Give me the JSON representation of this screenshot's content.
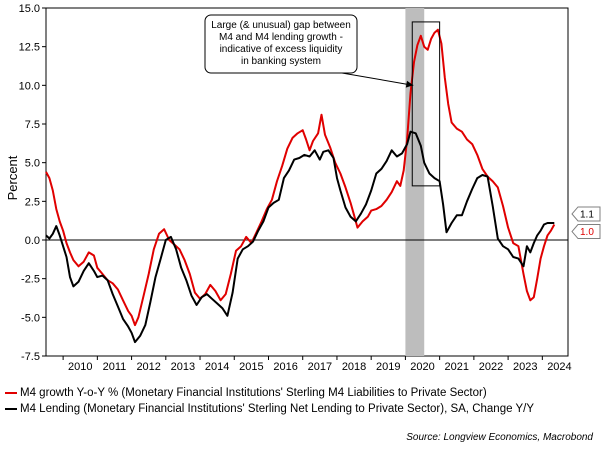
{
  "chart_data": {
    "type": "line",
    "ylabel": "Percent",
    "ylim": [
      -7.5,
      15.0
    ],
    "yticks": [
      "15.0",
      "12.5",
      "10.0",
      "7.5",
      "5.0",
      "2.5",
      "0.0",
      "-2.5",
      "-5.0",
      "-7.5"
    ],
    "xlim": [
      2009.5,
      2024.75
    ],
    "xticks": [
      "2010",
      "2011",
      "2012",
      "2013",
      "2014",
      "2015",
      "2016",
      "2017",
      "2018",
      "2019",
      "2020",
      "2021",
      "2022",
      "2023",
      "2024"
    ],
    "grid": false,
    "shaded_period": [
      2020.0,
      2020.55
    ],
    "annotation": {
      "lines": [
        "Large (& unusual) gap between",
        "M4 and M4 lending growth -",
        "indicative of excess liquidity",
        "in banking system"
      ]
    },
    "end_labels": [
      {
        "text": "1.1",
        "color": "#000000"
      },
      {
        "text": "1.0",
        "color": "#e00000"
      }
    ],
    "series": [
      {
        "name": "M4 growth Y-o-Y % (Monetary Financial Institutions' Sterling M4 Liabilities to Private Sector)",
        "color": "#e00000",
        "points": [
          [
            2009.5,
            4.4
          ],
          [
            2009.6,
            4.0
          ],
          [
            2009.7,
            3.2
          ],
          [
            2009.8,
            2.0
          ],
          [
            2009.9,
            1.2
          ],
          [
            2010.0,
            0.6
          ],
          [
            2010.1,
            -0.2
          ],
          [
            2010.2,
            -0.8
          ],
          [
            2010.3,
            -1.3
          ],
          [
            2010.45,
            -1.7
          ],
          [
            2010.6,
            -1.4
          ],
          [
            2010.75,
            -0.8
          ],
          [
            2010.9,
            -1.0
          ],
          [
            2011.0,
            -1.8
          ],
          [
            2011.15,
            -2.2
          ],
          [
            2011.3,
            -2.6
          ],
          [
            2011.45,
            -2.8
          ],
          [
            2011.6,
            -3.2
          ],
          [
            2011.75,
            -3.9
          ],
          [
            2011.9,
            -4.6
          ],
          [
            2012.0,
            -4.9
          ],
          [
            2012.1,
            -5.5
          ],
          [
            2012.2,
            -5.0
          ],
          [
            2012.35,
            -3.6
          ],
          [
            2012.5,
            -2.2
          ],
          [
            2012.65,
            -0.6
          ],
          [
            2012.8,
            0.4
          ],
          [
            2012.95,
            0.7
          ],
          [
            2013.1,
            0.0
          ],
          [
            2013.25,
            -0.3
          ],
          [
            2013.4,
            -0.6
          ],
          [
            2013.55,
            -1.3
          ],
          [
            2013.7,
            -2.2
          ],
          [
            2013.85,
            -3.4
          ],
          [
            2014.0,
            -3.8
          ],
          [
            2014.15,
            -3.5
          ],
          [
            2014.3,
            -2.9
          ],
          [
            2014.45,
            -3.3
          ],
          [
            2014.6,
            -3.9
          ],
          [
            2014.75,
            -3.5
          ],
          [
            2014.9,
            -2.2
          ],
          [
            2015.05,
            -0.7
          ],
          [
            2015.2,
            -0.4
          ],
          [
            2015.35,
            0.2
          ],
          [
            2015.5,
            -0.2
          ],
          [
            2015.65,
            0.5
          ],
          [
            2015.8,
            1.2
          ],
          [
            2015.95,
            2.0
          ],
          [
            2016.1,
            2.6
          ],
          [
            2016.25,
            3.8
          ],
          [
            2016.4,
            4.8
          ],
          [
            2016.55,
            5.9
          ],
          [
            2016.7,
            6.6
          ],
          [
            2016.85,
            6.9
          ],
          [
            2017.0,
            7.1
          ],
          [
            2017.1,
            6.5
          ],
          [
            2017.2,
            5.8
          ],
          [
            2017.3,
            6.4
          ],
          [
            2017.45,
            6.9
          ],
          [
            2017.55,
            8.1
          ],
          [
            2017.65,
            6.8
          ],
          [
            2017.8,
            6.0
          ],
          [
            2017.95,
            5.0
          ],
          [
            2018.1,
            4.3
          ],
          [
            2018.25,
            3.4
          ],
          [
            2018.4,
            2.4
          ],
          [
            2018.5,
            1.6
          ],
          [
            2018.6,
            0.8
          ],
          [
            2018.75,
            1.2
          ],
          [
            2018.9,
            1.5
          ],
          [
            2019.0,
            1.9
          ],
          [
            2019.15,
            2.0
          ],
          [
            2019.3,
            2.2
          ],
          [
            2019.45,
            2.6
          ],
          [
            2019.6,
            3.1
          ],
          [
            2019.75,
            3.8
          ],
          [
            2019.85,
            3.5
          ],
          [
            2019.95,
            4.5
          ],
          [
            2020.05,
            6.5
          ],
          [
            2020.15,
            9.5
          ],
          [
            2020.25,
            11.5
          ],
          [
            2020.35,
            12.6
          ],
          [
            2020.45,
            13.2
          ],
          [
            2020.55,
            12.5
          ],
          [
            2020.65,
            12.3
          ],
          [
            2020.75,
            13.0
          ],
          [
            2020.85,
            13.4
          ],
          [
            2020.95,
            13.6
          ],
          [
            2021.05,
            12.7
          ],
          [
            2021.15,
            10.5
          ],
          [
            2021.25,
            8.8
          ],
          [
            2021.35,
            7.6
          ],
          [
            2021.5,
            7.2
          ],
          [
            2021.65,
            7.0
          ],
          [
            2021.8,
            6.5
          ],
          [
            2021.95,
            6.2
          ],
          [
            2022.1,
            5.5
          ],
          [
            2022.25,
            4.6
          ],
          [
            2022.4,
            4.1
          ],
          [
            2022.55,
            3.8
          ],
          [
            2022.7,
            3.4
          ],
          [
            2022.85,
            2.2
          ],
          [
            2023.0,
            0.8
          ],
          [
            2023.15,
            -0.2
          ],
          [
            2023.3,
            -0.4
          ],
          [
            2023.45,
            -2.2
          ],
          [
            2023.55,
            -3.3
          ],
          [
            2023.65,
            -3.9
          ],
          [
            2023.75,
            -3.7
          ],
          [
            2023.85,
            -2.5
          ],
          [
            2023.95,
            -1.2
          ],
          [
            2024.05,
            -0.4
          ],
          [
            2024.15,
            0.3
          ],
          [
            2024.25,
            0.6
          ],
          [
            2024.35,
            1.0
          ]
        ]
      },
      {
        "name": "M4 Lending (Monetary Financial Institutions' Sterling Net Lending to Private Sector), SA, Change Y/Y",
        "color": "#000000",
        "points": [
          [
            2009.5,
            0.3
          ],
          [
            2009.6,
            0.1
          ],
          [
            2009.7,
            0.4
          ],
          [
            2009.8,
            0.9
          ],
          [
            2009.9,
            0.3
          ],
          [
            2010.0,
            -0.4
          ],
          [
            2010.1,
            -1.1
          ],
          [
            2010.2,
            -2.4
          ],
          [
            2010.3,
            -3.0
          ],
          [
            2010.45,
            -2.7
          ],
          [
            2010.6,
            -2.0
          ],
          [
            2010.75,
            -1.5
          ],
          [
            2010.9,
            -2.0
          ],
          [
            2011.0,
            -2.4
          ],
          [
            2011.15,
            -2.3
          ],
          [
            2011.3,
            -2.6
          ],
          [
            2011.45,
            -3.5
          ],
          [
            2011.6,
            -4.3
          ],
          [
            2011.75,
            -5.1
          ],
          [
            2011.9,
            -5.6
          ],
          [
            2012.0,
            -6.0
          ],
          [
            2012.1,
            -6.6
          ],
          [
            2012.25,
            -6.2
          ],
          [
            2012.4,
            -5.5
          ],
          [
            2012.55,
            -4.0
          ],
          [
            2012.7,
            -2.4
          ],
          [
            2012.85,
            -1.2
          ],
          [
            2013.0,
            0.0
          ],
          [
            2013.15,
            0.2
          ],
          [
            2013.3,
            -0.6
          ],
          [
            2013.45,
            -1.8
          ],
          [
            2013.6,
            -2.6
          ],
          [
            2013.75,
            -3.6
          ],
          [
            2013.9,
            -4.2
          ],
          [
            2014.05,
            -3.7
          ],
          [
            2014.2,
            -3.5
          ],
          [
            2014.35,
            -3.8
          ],
          [
            2014.5,
            -4.1
          ],
          [
            2014.65,
            -4.4
          ],
          [
            2014.8,
            -4.9
          ],
          [
            2014.95,
            -3.4
          ],
          [
            2015.1,
            -1.2
          ],
          [
            2015.25,
            -0.6
          ],
          [
            2015.4,
            -0.4
          ],
          [
            2015.55,
            -0.1
          ],
          [
            2015.7,
            0.6
          ],
          [
            2015.85,
            1.2
          ],
          [
            2016.0,
            2.1
          ],
          [
            2016.15,
            2.4
          ],
          [
            2016.3,
            2.6
          ],
          [
            2016.45,
            4.0
          ],
          [
            2016.6,
            4.5
          ],
          [
            2016.75,
            5.2
          ],
          [
            2016.9,
            5.3
          ],
          [
            2017.05,
            5.5
          ],
          [
            2017.2,
            5.4
          ],
          [
            2017.35,
            5.8
          ],
          [
            2017.5,
            5.2
          ],
          [
            2017.6,
            5.7
          ],
          [
            2017.75,
            5.8
          ],
          [
            2017.9,
            5.3
          ],
          [
            2018.0,
            4.0
          ],
          [
            2018.1,
            3.2
          ],
          [
            2018.25,
            2.1
          ],
          [
            2018.4,
            1.5
          ],
          [
            2018.55,
            1.2
          ],
          [
            2018.7,
            1.7
          ],
          [
            2018.85,
            2.3
          ],
          [
            2019.0,
            3.2
          ],
          [
            2019.15,
            4.3
          ],
          [
            2019.3,
            4.6
          ],
          [
            2019.45,
            5.1
          ],
          [
            2019.6,
            5.8
          ],
          [
            2019.75,
            5.4
          ],
          [
            2019.9,
            5.6
          ],
          [
            2020.05,
            6.2
          ],
          [
            2020.15,
            7.0
          ],
          [
            2020.3,
            6.9
          ],
          [
            2020.45,
            6.1
          ],
          [
            2020.55,
            5.0
          ],
          [
            2020.7,
            4.3
          ],
          [
            2020.85,
            4.0
          ],
          [
            2021.0,
            3.8
          ],
          [
            2021.1,
            2.3
          ],
          [
            2021.2,
            0.5
          ],
          [
            2021.35,
            1.1
          ],
          [
            2021.5,
            1.6
          ],
          [
            2021.65,
            1.6
          ],
          [
            2021.8,
            2.5
          ],
          [
            2021.95,
            3.3
          ],
          [
            2022.1,
            4.0
          ],
          [
            2022.25,
            4.2
          ],
          [
            2022.4,
            4.1
          ],
          [
            2022.55,
            2.2
          ],
          [
            2022.7,
            0.1
          ],
          [
            2022.85,
            -0.4
          ],
          [
            2023.0,
            -0.6
          ],
          [
            2023.15,
            -1.1
          ],
          [
            2023.3,
            -1.2
          ],
          [
            2023.45,
            -1.7
          ],
          [
            2023.55,
            -0.4
          ],
          [
            2023.65,
            -0.8
          ],
          [
            2023.75,
            -0.2
          ],
          [
            2023.85,
            0.3
          ],
          [
            2023.95,
            0.6
          ],
          [
            2024.05,
            1.0
          ],
          [
            2024.15,
            1.1
          ],
          [
            2024.3,
            1.1
          ],
          [
            2024.35,
            1.1
          ]
        ]
      }
    ]
  },
  "legend": {
    "items": [
      {
        "label": "M4 growth Y-o-Y % (Monetary Financial Institutions' Sterling M4 Liabilities to Private Sector)",
        "color": "#e00000"
      },
      {
        "label": "M4 Lending (Monetary Financial Institutions' Sterling Net Lending to Private Sector), SA, Change Y/Y",
        "color": "#000000"
      }
    ]
  },
  "source": "Source: Longview Economics, Macrobond"
}
